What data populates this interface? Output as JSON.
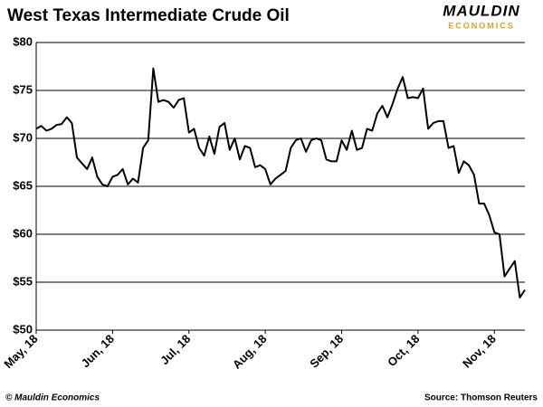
{
  "chart_data": {
    "type": "line",
    "title": "West Texas Intermediate Crude Oil",
    "logo": {
      "top": "MAULDIN",
      "bottom": "ECONOMICS"
    },
    "footer_left": "© Mauldin Economics",
    "source": "Source: Thomson Reuters",
    "categories": [
      "May, 18",
      null,
      null,
      null,
      null,
      null,
      null,
      null,
      null,
      null,
      null,
      null,
      null,
      null,
      null,
      "Jun, 18",
      null,
      null,
      null,
      null,
      null,
      null,
      null,
      null,
      null,
      null,
      null,
      null,
      null,
      null,
      "Jul, 18",
      null,
      null,
      null,
      null,
      null,
      null,
      null,
      null,
      null,
      null,
      null,
      null,
      null,
      null,
      "Aug, 18",
      null,
      null,
      null,
      null,
      null,
      null,
      null,
      null,
      null,
      null,
      null,
      null,
      null,
      null,
      "Sep, 18",
      null,
      null,
      null,
      null,
      null,
      null,
      null,
      null,
      null,
      null,
      null,
      null,
      null,
      null,
      "Oct, 18",
      null,
      null,
      null,
      null,
      null,
      null,
      null,
      null,
      null,
      null,
      null,
      null,
      null,
      null,
      "Nov, 18",
      null,
      null,
      null,
      null,
      null,
      null
    ],
    "values": [
      71.0,
      71.3,
      70.8,
      71.0,
      71.4,
      71.5,
      72.2,
      71.6,
      68.0,
      67.4,
      66.8,
      68.0,
      66.0,
      65.2,
      65.0,
      66.0,
      66.2,
      66.8,
      65.2,
      65.8,
      65.4,
      69.0,
      69.8,
      77.3,
      73.8,
      74.0,
      73.8,
      73.2,
      74.0,
      74.2,
      70.6,
      71.0,
      69.0,
      68.2,
      70.2,
      68.4,
      71.2,
      71.6,
      68.8,
      70.0,
      67.8,
      69.2,
      69.0,
      67.0,
      67.2,
      66.8,
      65.2,
      65.8,
      66.2,
      66.6,
      69.0,
      69.8,
      70.0,
      68.6,
      69.8,
      70.0,
      69.8,
      67.8,
      67.6,
      67.6,
      69.8,
      68.8,
      70.8,
      68.8,
      69.0,
      71.0,
      70.8,
      72.6,
      73.4,
      72.2,
      73.6,
      75.2,
      76.4,
      74.2,
      74.3,
      74.2,
      75.2,
      71.0,
      71.6,
      71.8,
      71.8,
      69.0,
      69.2,
      66.4,
      67.6,
      67.2,
      66.2,
      63.2,
      63.2,
      62.0,
      60.2,
      60.0,
      55.6,
      56.4,
      57.2,
      53.4,
      54.2
    ],
    "color": "#000000",
    "ylim": [
      50,
      80
    ],
    "yticks": [
      {
        "value": 50,
        "label": "$50"
      },
      {
        "value": 55,
        "label": "$55"
      },
      {
        "value": 60,
        "label": "$60"
      },
      {
        "value": 65,
        "label": "$65"
      },
      {
        "value": 70,
        "label": "$70"
      },
      {
        "value": 75,
        "label": "$75"
      },
      {
        "value": 80,
        "label": "$80"
      }
    ],
    "grid": true
  }
}
